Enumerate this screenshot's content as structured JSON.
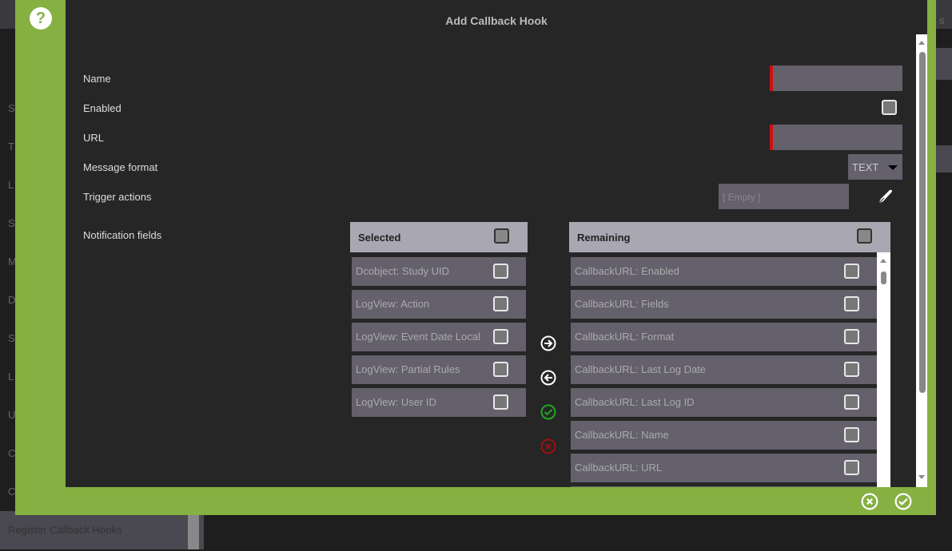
{
  "background": {
    "sidebar_letters": [
      "S",
      "T",
      "L",
      "S",
      "M",
      "D",
      "S",
      "L",
      "U",
      "C",
      "C"
    ],
    "sidebar_bottom_item": "Register Callback Hooks",
    "right_partial": "s"
  },
  "dialog": {
    "title": "Add Callback Hook",
    "accent": "#86b042",
    "fields": {
      "name_label": "Name",
      "name_value": "",
      "enabled_label": "Enabled",
      "enabled_checked": false,
      "url_label": "URL",
      "url_value": "",
      "format_label": "Message format",
      "format_value": "TEXT",
      "trigger_label": "Trigger actions",
      "trigger_placeholder": "[ Empty ]",
      "notification_label": "Notification fields"
    },
    "selected": {
      "header": "Selected",
      "items": [
        "Dcobject: Study UID",
        "LogView: Action",
        "LogView: Event Date Local",
        "LogView: Partial Rules",
        "LogView: User ID"
      ]
    },
    "remaining": {
      "header": "Remaining",
      "items": [
        "CallbackURL: Enabled",
        "CallbackURL: Fields",
        "CallbackURL: Format",
        "CallbackURL: Last Log Date",
        "CallbackURL: Last Log ID",
        "CallbackURL: Name",
        "CallbackURL: URL",
        ""
      ]
    }
  }
}
